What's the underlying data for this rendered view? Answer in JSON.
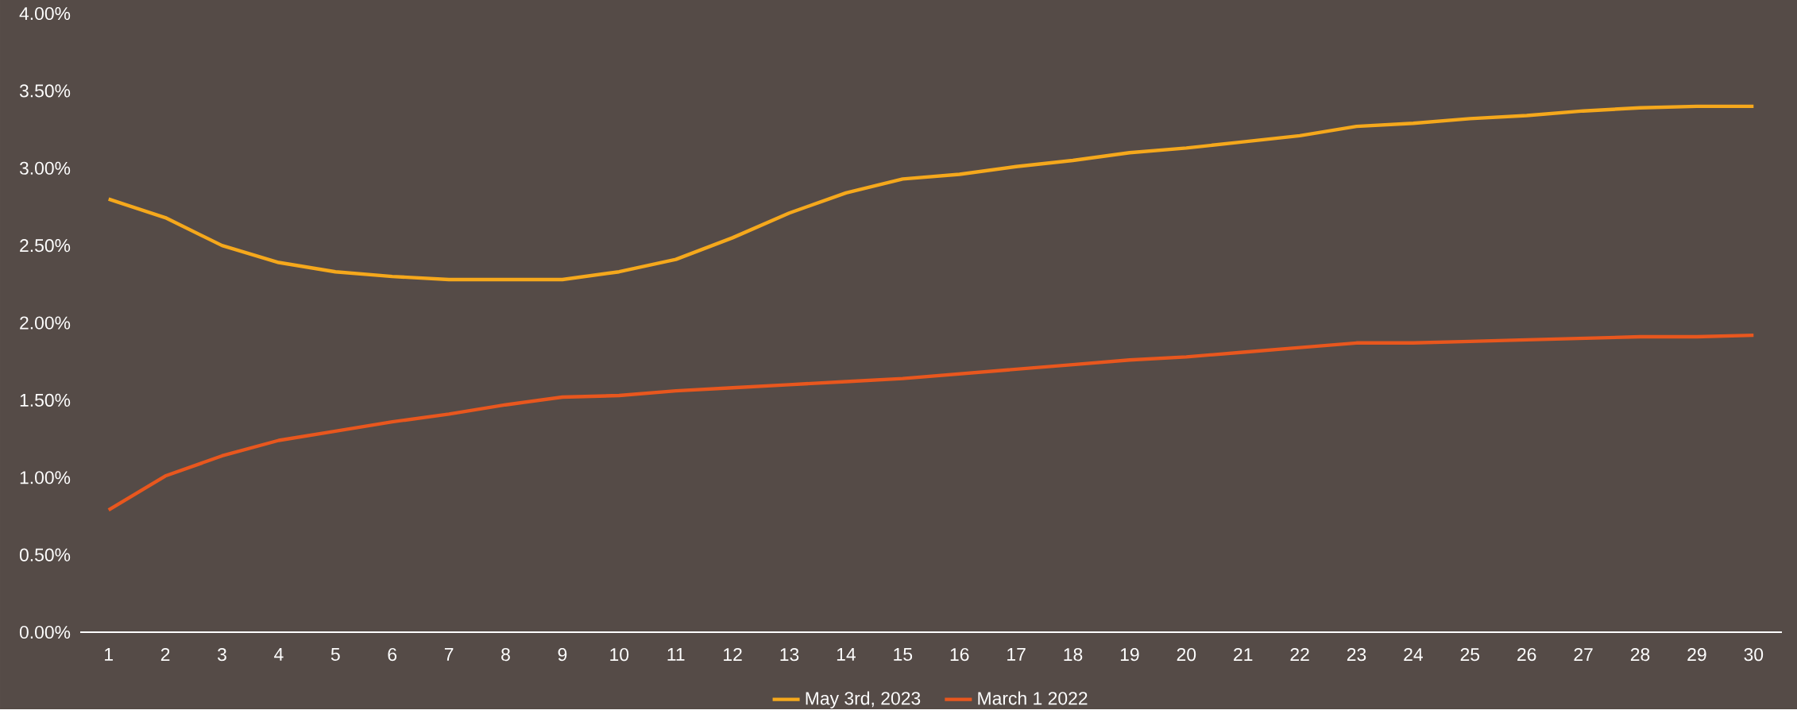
{
  "chart_data": {
    "type": "line",
    "categories": [
      "1",
      "2",
      "3",
      "4",
      "5",
      "6",
      "7",
      "8",
      "9",
      "10",
      "11",
      "12",
      "13",
      "14",
      "15",
      "16",
      "17",
      "18",
      "19",
      "20",
      "21",
      "22",
      "23",
      "24",
      "25",
      "26",
      "27",
      "28",
      "29",
      "30"
    ],
    "series": [
      {
        "name": "May 3rd, 2023",
        "color": "#f5a81c",
        "values": [
          2.8,
          2.68,
          2.5,
          2.39,
          2.33,
          2.3,
          2.28,
          2.28,
          2.28,
          2.33,
          2.41,
          2.55,
          2.71,
          2.84,
          2.93,
          2.96,
          3.01,
          3.05,
          3.1,
          3.13,
          3.17,
          3.21,
          3.27,
          3.29,
          3.32,
          3.34,
          3.37,
          3.39,
          3.4,
          3.4
        ]
      },
      {
        "name": "March 1 2022",
        "color": "#e8571e",
        "values": [
          0.79,
          1.01,
          1.14,
          1.24,
          1.3,
          1.36,
          1.41,
          1.47,
          1.52,
          1.53,
          1.56,
          1.58,
          1.6,
          1.62,
          1.64,
          1.67,
          1.7,
          1.73,
          1.76,
          1.78,
          1.81,
          1.84,
          1.87,
          1.87,
          1.88,
          1.89,
          1.9,
          1.91,
          1.91,
          1.92
        ]
      }
    ],
    "ylim": [
      0,
      4
    ],
    "yticks": [
      {
        "value": 0,
        "label": "0.00%"
      },
      {
        "value": 0.5,
        "label": "0.50%"
      },
      {
        "value": 1,
        "label": "1.00%"
      },
      {
        "value": 1.5,
        "label": "1.50%"
      },
      {
        "value": 2,
        "label": "2.00%"
      },
      {
        "value": 2.5,
        "label": "2.50%"
      },
      {
        "value": 3,
        "label": "3.00%"
      },
      {
        "value": 3.5,
        "label": "3.50%"
      },
      {
        "value": 4,
        "label": "4.00%"
      }
    ],
    "legend": "bottom",
    "marker": "none",
    "line_style": "solid",
    "grid": false
  }
}
